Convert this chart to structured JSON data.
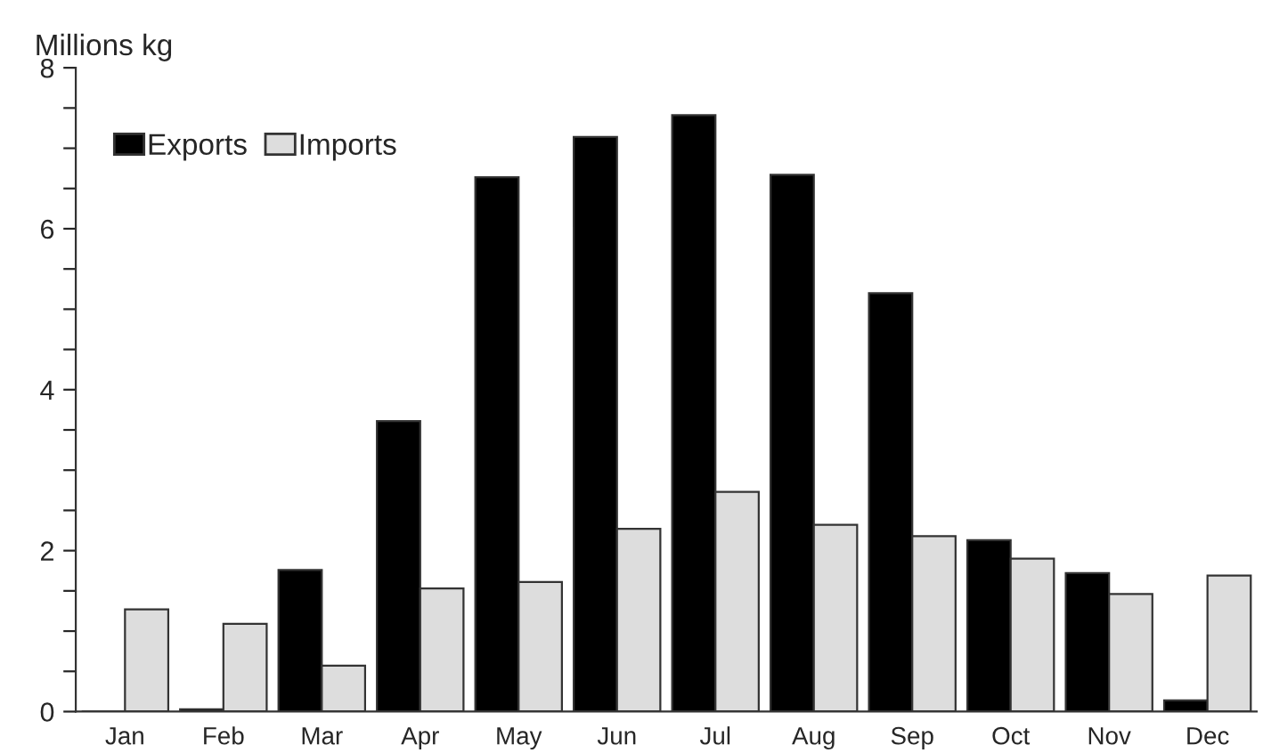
{
  "chart_data": {
    "type": "bar",
    "ylabel": "Millions kg",
    "categories": [
      "Jan",
      "Feb",
      "Mar",
      "Apr",
      "May",
      "Jun",
      "Jul",
      "Aug",
      "Sep",
      "Oct",
      "Nov",
      "Dec"
    ],
    "series": [
      {
        "name": "Exports",
        "color": "#000000",
        "values": [
          0,
          0.03,
          1.76,
          3.61,
          6.64,
          7.14,
          7.41,
          6.67,
          5.2,
          2.13,
          1.72,
          0.14
        ]
      },
      {
        "name": "Imports",
        "color": "#dddddd",
        "values": [
          1.27,
          1.09,
          0.57,
          1.53,
          1.61,
          2.27,
          2.73,
          2.32,
          2.18,
          1.9,
          1.46,
          1.69
        ]
      }
    ],
    "ylim": [
      0,
      8
    ],
    "yticks": [
      0,
      {
        "value": 0.5,
        "label": null
      },
      {
        "value": 1,
        "label": null
      },
      {
        "value": 1.5,
        "label": null
      },
      2,
      {
        "value": 2.5,
        "label": null
      },
      {
        "value": 3,
        "label": null
      },
      {
        "value": 3.5,
        "label": null
      },
      4,
      {
        "value": 4.5,
        "label": null
      },
      {
        "value": 5,
        "label": null
      },
      {
        "value": 5.5,
        "label": null
      },
      6,
      {
        "value": 6.5,
        "label": null
      },
      {
        "value": 7,
        "label": null
      },
      {
        "value": 7.5,
        "label": null
      },
      8
    ],
    "legend": "top left",
    "grid": false
  }
}
